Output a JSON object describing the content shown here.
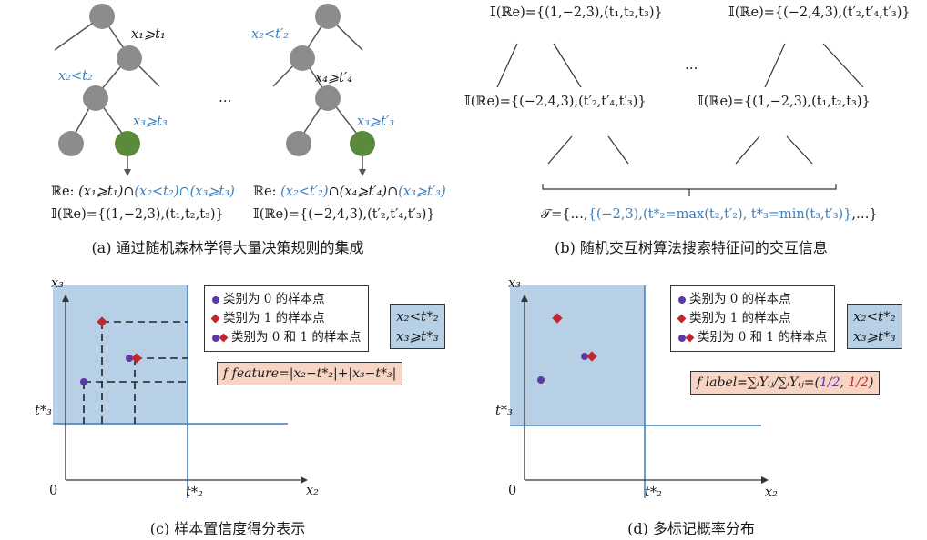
{
  "panel_a": {
    "tree1_labels": {
      "e1": "x₁⩾t₁",
      "e2": "x₂<t₂",
      "e3": "x₃⩾t₃"
    },
    "tree2_labels": {
      "e1": "x₂<t′₂",
      "e2": "x₄⩾t′₄",
      "e3": "x₃⩾t′₃"
    },
    "ellipsis": "…",
    "rule1": {
      "prefix": "ℝe: ",
      "p1": "(x₁⩾t₁)∩",
      "p2": "(x₂<t₂)∩(x₃⩾t₃)"
    },
    "rule2": {
      "prefix": "ℝe: ",
      "p1": "(x₂<t′₂)",
      "p2": "∩(x₄⩾t′₄)∩",
      "p3": "(x₃⩾t′₃)"
    },
    "interact1": "𝕀(ℝe)={(1,−2,3),(t₁,t₂,t₃)}",
    "interact2": "𝕀(ℝe)={(−2,4,3),(t′₂,t′₄,t′₃)}",
    "caption": "(a) 通过随机森林学得大量决策规则的集成"
  },
  "panel_b": {
    "node_top_left": "𝕀(ℝe)={(1,−2,3),(t₁,t₂,t₃)}",
    "node_top_right": "𝕀(ℝe)={(−2,4,3),(t′₂,t′₄,t′₃)}",
    "node_mid_left": "𝕀(ℝe)={(−2,4,3),(t′₂,t′₄,t′₃)}",
    "node_mid_right": "𝕀(ℝe)={(1,−2,3),(t₁,t₂,t₃)}",
    "ellipsis": "…",
    "set_prefix": "𝒯={…,",
    "set_body": "{(−2,3),(t*₂=max(t₂,t′₂), t*₃=min(t₃,t′₃)}",
    "set_suffix": ",…}",
    "caption": "(b) 随机交互树算法搜索特征间的交互信息"
  },
  "legend": {
    "class0": "类别为 0 的样本点",
    "class1": "类别为 1 的样本点",
    "class01": "类别为 0 和 1 的样本点"
  },
  "condition": {
    "line1": "x₂<t*₂",
    "line2": "x₃⩾t*₃"
  },
  "panel_c": {
    "y_axis": "x₃",
    "x_axis": "x₂",
    "origin": "0",
    "t3": "t*₃",
    "t2": "t*₂",
    "formula": "f feature=|x₂−t*₂|+|x₃−t*₃|",
    "caption": "(c) 样本置信度得分表示"
  },
  "panel_d": {
    "y_axis": "x₃",
    "x_axis": "x₂",
    "origin": "0",
    "t3": "t*₃",
    "t2": "t*₂",
    "formula_lhs": "f label=∑ᵢYᵢⱼ/∑ᵢYᵢⱼ=(",
    "frac1": "1/2",
    "frac2": "1/2",
    "formula_rhs": ")",
    "caption": "(d) 多标记概率分布"
  },
  "colors": {
    "node_gray": "#8c8c8c",
    "node_green": "#5b8a3c",
    "blue": "#3a7fc1",
    "shade": "#b7d0e5",
    "class0": "#5b3aa5",
    "class1": "#c0282e",
    "formula_bg": "#f7d4c4"
  }
}
